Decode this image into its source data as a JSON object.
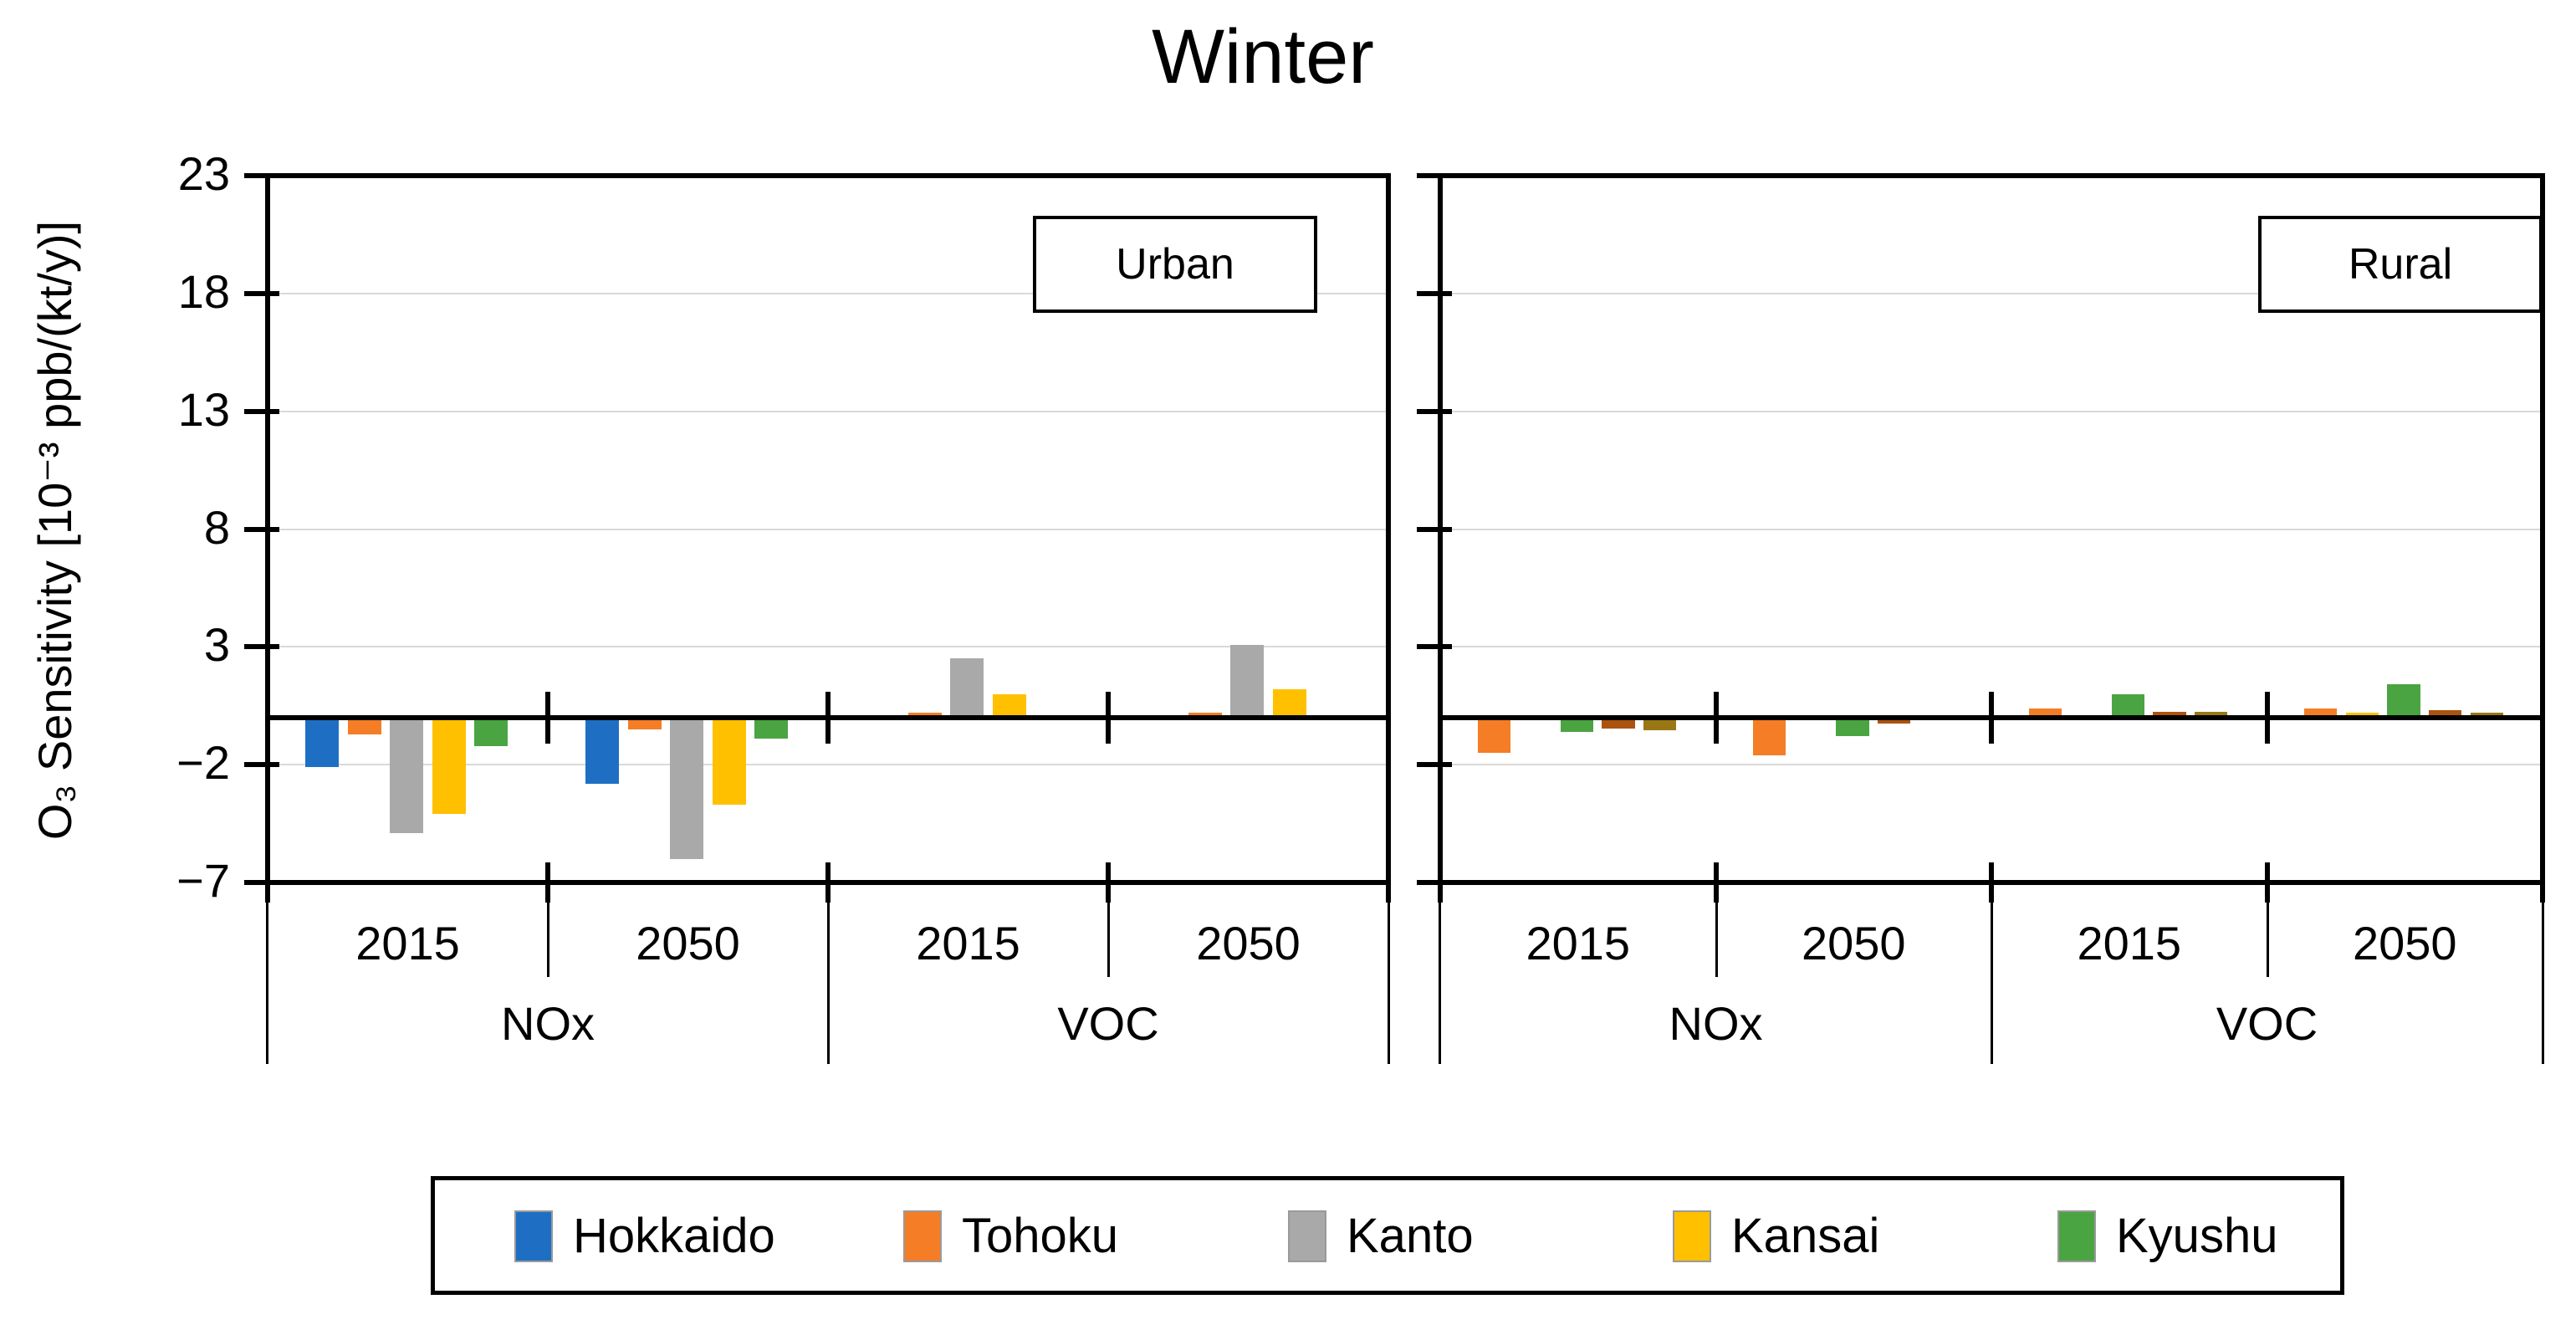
{
  "chart_data": {
    "type": "bar",
    "title": "Winter",
    "ylabel": "O₃ Sensitivity [10⁻³ ppb/(kt/y)]",
    "ylim": [
      -7,
      23
    ],
    "y_ticks": [
      {
        "value": 23,
        "label": "23"
      },
      {
        "value": 18,
        "label": "18"
      },
      {
        "value": 13,
        "label": "13"
      },
      {
        "value": 8,
        "label": "8"
      },
      {
        "value": 3,
        "label": "3"
      },
      {
        "value": -2,
        "label": "−2"
      },
      {
        "value": -7,
        "label": "−7"
      }
    ],
    "grid": "horizontal-light-gray",
    "legend_position": "bottom-boxed",
    "rural_color_note": "bars in Rural panel are drawn in orange/gold/green/dark-orange/dark-gold shades",
    "panels": [
      {
        "label": "Urban",
        "groups": [
          {
            "pollutant": "NOx",
            "year": "2015",
            "bars": [
              {
                "series": "Hokkaido",
                "color": "#1e6fc4",
                "value": -2.1
              },
              {
                "series": "Tohoku",
                "color": "#f47d26",
                "value": -0.7
              },
              {
                "series": "Kanto",
                "color": "#a9a9a9",
                "value": -4.9
              },
              {
                "series": "Kansai",
                "color": "#ffc000",
                "value": -4.1
              },
              {
                "series": "Kyushu",
                "color": "#4ba442",
                "value": -1.2
              }
            ]
          },
          {
            "pollutant": "NOx",
            "year": "2050",
            "bars": [
              {
                "series": "Hokkaido",
                "color": "#1e6fc4",
                "value": -2.8
              },
              {
                "series": "Tohoku",
                "color": "#f47d26",
                "value": -0.5
              },
              {
                "series": "Kanto",
                "color": "#a9a9a9",
                "value": -6.0
              },
              {
                "series": "Kansai",
                "color": "#ffc000",
                "value": -3.7
              },
              {
                "series": "Kyushu",
                "color": "#4ba442",
                "value": -0.9
              }
            ]
          },
          {
            "pollutant": "VOC",
            "year": "2015",
            "bars": [
              {
                "series": "Hokkaido",
                "color": "#1e6fc4",
                "value": 0
              },
              {
                "series": "Tohoku",
                "color": "#f47d26",
                "value": 0.2
              },
              {
                "series": "Kanto",
                "color": "#a9a9a9",
                "value": 2.5
              },
              {
                "series": "Kansai",
                "color": "#ffc000",
                "value": 1.0
              },
              {
                "series": "Kyushu",
                "color": "#4ba442",
                "value": 0.1
              }
            ]
          },
          {
            "pollutant": "VOC",
            "year": "2050",
            "bars": [
              {
                "series": "Hokkaido",
                "color": "#1e6fc4",
                "value": 0
              },
              {
                "series": "Tohoku",
                "color": "#f47d26",
                "value": 0.2
              },
              {
                "series": "Kanto",
                "color": "#a9a9a9",
                "value": 3.1
              },
              {
                "series": "Kansai",
                "color": "#ffc000",
                "value": 1.2
              },
              {
                "series": "Kyushu",
                "color": "#4ba442",
                "value": 0.1
              }
            ]
          }
        ]
      },
      {
        "label": "Rural",
        "groups": [
          {
            "pollutant": "NOx",
            "year": "2015",
            "bars": [
              {
                "series": "orange",
                "color": "#f47d26",
                "value": -1.5
              },
              {
                "series": "gold",
                "color": "#ffc000",
                "value": 0
              },
              {
                "series": "green",
                "color": "#4ba442",
                "value": -0.6
              },
              {
                "series": "dark-orange",
                "color": "#ac5310",
                "value": -0.45
              },
              {
                "series": "dark-gold",
                "color": "#997713",
                "value": -0.55
              }
            ]
          },
          {
            "pollutant": "NOx",
            "year": "2050",
            "bars": [
              {
                "series": "orange",
                "color": "#f47d26",
                "value": -1.6
              },
              {
                "series": "gold",
                "color": "#ffc000",
                "value": 0
              },
              {
                "series": "green",
                "color": "#4ba442",
                "value": -0.8
              },
              {
                "series": "dark-orange",
                "color": "#ac5310",
                "value": -0.25
              },
              {
                "series": "dark-gold",
                "color": "#997713",
                "value": 0
              }
            ]
          },
          {
            "pollutant": "VOC",
            "year": "2015",
            "bars": [
              {
                "series": "orange",
                "color": "#f47d26",
                "value": 0.4
              },
              {
                "series": "gold",
                "color": "#ffc000",
                "value": 0
              },
              {
                "series": "green",
                "color": "#4ba442",
                "value": 1.0
              },
              {
                "series": "dark-orange",
                "color": "#ac5310",
                "value": 0.25
              },
              {
                "series": "dark-gold",
                "color": "#997713",
                "value": 0.25
              }
            ]
          },
          {
            "pollutant": "VOC",
            "year": "2050",
            "bars": [
              {
                "series": "orange",
                "color": "#f47d26",
                "value": 0.4
              },
              {
                "series": "gold",
                "color": "#ffc000",
                "value": 0.2
              },
              {
                "series": "green",
                "color": "#4ba442",
                "value": 1.4
              },
              {
                "series": "dark-orange",
                "color": "#ac5310",
                "value": 0.3
              },
              {
                "series": "dark-gold",
                "color": "#997713",
                "value": 0.2
              }
            ]
          }
        ]
      }
    ],
    "legend": [
      {
        "label": "Hokkaido",
        "color": "#1e6fc4"
      },
      {
        "label": "Tohoku",
        "color": "#f47d26"
      },
      {
        "label": "Kanto",
        "color": "#a9a9a9"
      },
      {
        "label": "Kansai",
        "color": "#ffc000"
      },
      {
        "label": "Kyushu",
        "color": "#4ba442"
      }
    ]
  }
}
